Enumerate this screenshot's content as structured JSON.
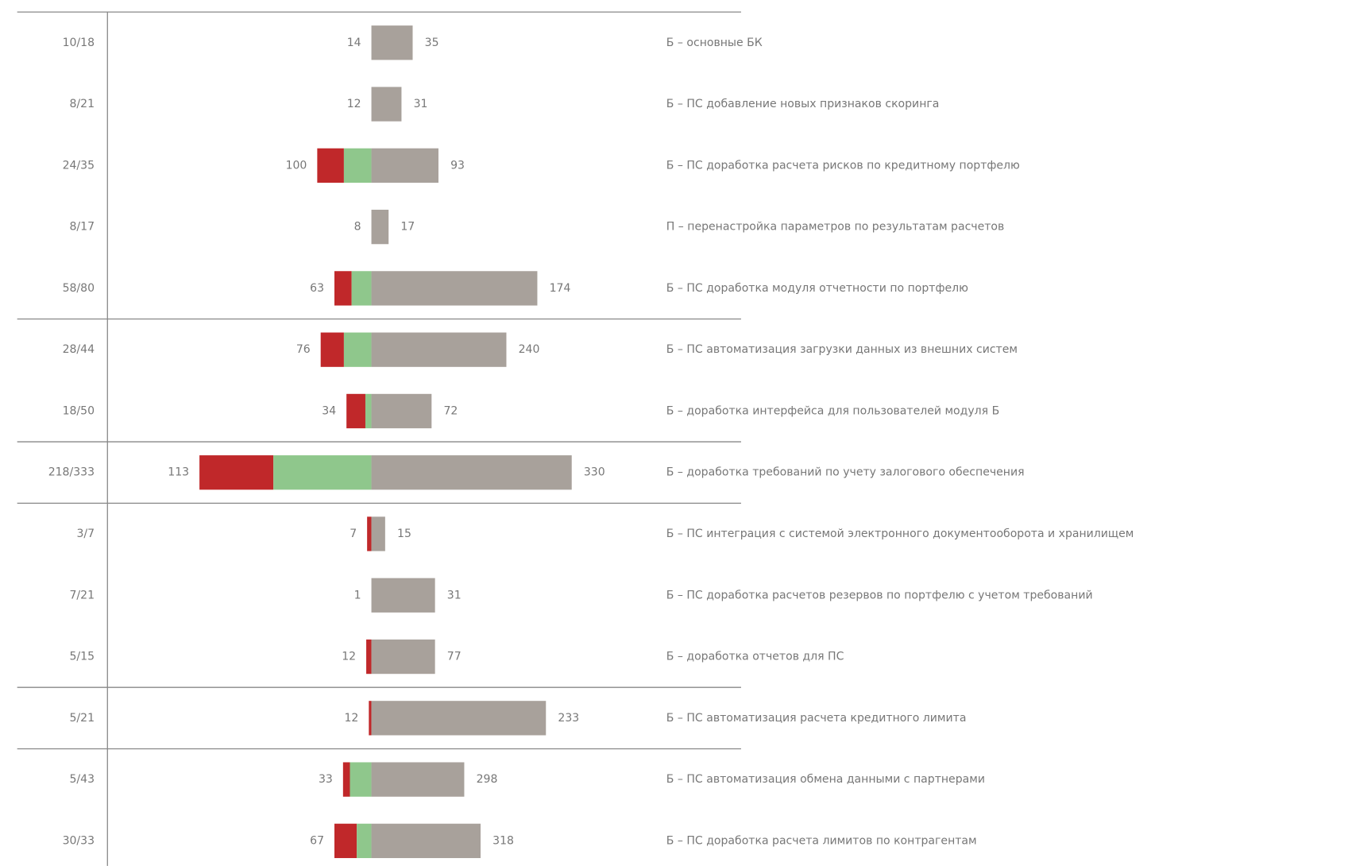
{
  "chart_data": {
    "type": "diverging-bar",
    "xlim": [
      -302,
      430
    ],
    "colors": {
      "red": "#c0282a",
      "green": "#8fc78c",
      "gray": "#a8a19b"
    },
    "groups": [
      {
        "rows": [
          {
            "ratio": "10/18",
            "left": "14",
            "right": "35",
            "label": "Б – основные БК",
            "red": 0,
            "green": 0,
            "gray": 48
          },
          {
            "ratio": "8/21",
            "left": "12",
            "right": "31",
            "label": "Б – ПС добавление новых признаков скоринга",
            "red": 0,
            "green": 0,
            "gray": 35
          },
          {
            "ratio": "24/35",
            "left": "100",
            "right": "93",
            "label": "Б – ПС доработка расчета рисков по кредитному портфелю",
            "red": 31,
            "green": 32,
            "gray": 78
          },
          {
            "ratio": "8/17",
            "left": "8",
            "right": "17",
            "label": "П – перенастройка параметров по результатам расчетов",
            "red": 0,
            "green": 0,
            "gray": 20
          },
          {
            "ratio": "58/80",
            "left": "63",
            "right": "174",
            "label": "Б – ПС доработка модуля отчетности по портфелю",
            "red": 20,
            "green": 23,
            "gray": 193
          }
        ]
      },
      {
        "rows": [
          {
            "ratio": "28/44",
            "left": "76",
            "right": "240",
            "label": "Б – ПС автоматизация загрузки данных из внешних систем",
            "red": 27,
            "green": 32,
            "gray": 157
          },
          {
            "ratio": "18/50",
            "left": "34",
            "right": "72",
            "label": "Б – доработка интерфейса для пользователей модуля Б",
            "red": 22,
            "green": 7,
            "gray": 70
          }
        ]
      },
      {
        "rows": [
          {
            "ratio": "218/333",
            "left": "113",
            "right": "330",
            "label": "Б – доработка требований по учету залогового обеспечения",
            "red": 86,
            "green": 114,
            "gray": 233
          }
        ]
      },
      {
        "rows": [
          {
            "ratio": "3/7",
            "left": "7",
            "right": "15",
            "label": "Б – ПС интеграция с системой электронного документооборота и хранилищем",
            "red": 5,
            "green": 0,
            "gray": 16
          },
          {
            "ratio": "7/21",
            "left": "1",
            "right": "31",
            "label": "Б – ПС доработка расчетов резервов по портфелю с учетом требований",
            "red": 0,
            "green": 0,
            "gray": 74
          },
          {
            "ratio": "5/15",
            "left": "12",
            "right": "77",
            "label": "Б – доработка отчетов для ПС",
            "red": 6,
            "green": 0,
            "gray": 74
          }
        ]
      },
      {
        "rows": [
          {
            "ratio": "5/21",
            "left": "12",
            "right": "233",
            "label": "Б – ПС автоматизация расчета кредитного лимита",
            "red": 3,
            "green": 0,
            "gray": 203
          }
        ]
      },
      {
        "rows": [
          {
            "ratio": "5/43",
            "left": "33",
            "right": "298",
            "label": "Б – ПС автоматизация обмена данными с партнерами",
            "red": 8,
            "green": 25,
            "gray": 108
          },
          {
            "ratio": "30/33",
            "left": "67",
            "right": "318",
            "label": "Б – ПС доработка расчета лимитов по контрагентам",
            "red": 26,
            "green": 17,
            "gray": 127
          }
        ]
      }
    ]
  }
}
